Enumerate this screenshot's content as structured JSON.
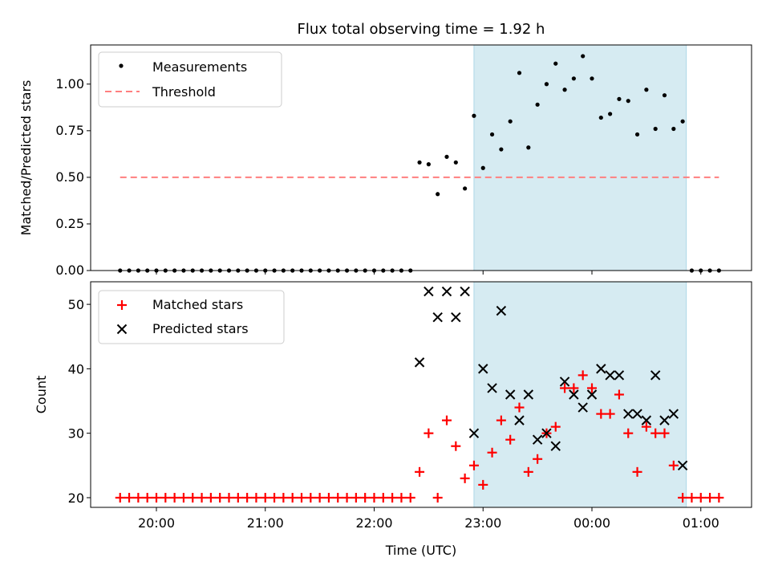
{
  "chart_data": [
    {
      "type": "scatter",
      "title": "Flux total observing time = 1.92 h",
      "ylabel": "Matched/Predicted stars",
      "xlabel": "",
      "ylim": [
        0,
        1.21
      ],
      "yticks": [
        "0.00",
        "0.25",
        "0.50",
        "0.75",
        "1.00"
      ],
      "legend_position": "top-left",
      "grid": false,
      "threshold": 0.5,
      "highlight_span": [
        "22:55",
        "00:52"
      ],
      "highlight_color": "#add8e6",
      "threshold_color": "#ff7f7f",
      "series": [
        {
          "name": "Measurements",
          "marker": "dot",
          "color": "#000000",
          "points": [
            [
              "19:40",
              0
            ],
            [
              "19:45",
              0
            ],
            [
              "19:50",
              0
            ],
            [
              "19:55",
              0
            ],
            [
              "20:00",
              0
            ],
            [
              "20:05",
              0
            ],
            [
              "20:10",
              0
            ],
            [
              "20:15",
              0
            ],
            [
              "20:20",
              0
            ],
            [
              "20:25",
              0
            ],
            [
              "20:30",
              0
            ],
            [
              "20:35",
              0
            ],
            [
              "20:40",
              0
            ],
            [
              "20:45",
              0
            ],
            [
              "20:50",
              0
            ],
            [
              "20:55",
              0
            ],
            [
              "21:00",
              0
            ],
            [
              "21:05",
              0
            ],
            [
              "21:10",
              0
            ],
            [
              "21:15",
              0
            ],
            [
              "21:20",
              0
            ],
            [
              "21:25",
              0
            ],
            [
              "21:30",
              0
            ],
            [
              "21:35",
              0
            ],
            [
              "21:40",
              0
            ],
            [
              "21:45",
              0
            ],
            [
              "21:50",
              0
            ],
            [
              "21:55",
              0
            ],
            [
              "22:00",
              0
            ],
            [
              "22:05",
              0
            ],
            [
              "22:10",
              0
            ],
            [
              "22:15",
              0
            ],
            [
              "22:20",
              0
            ],
            [
              "22:25",
              0.58
            ],
            [
              "22:30",
              0.57
            ],
            [
              "22:35",
              0.41
            ],
            [
              "22:40",
              0.61
            ],
            [
              "22:45",
              0.58
            ],
            [
              "22:50",
              0.44
            ],
            [
              "22:55",
              0.83
            ],
            [
              "23:00",
              0.55
            ],
            [
              "23:05",
              0.73
            ],
            [
              "23:10",
              0.65
            ],
            [
              "23:15",
              0.8
            ],
            [
              "23:20",
              1.06
            ],
            [
              "23:25",
              0.66
            ],
            [
              "23:30",
              0.89
            ],
            [
              "23:35",
              1.0
            ],
            [
              "23:40",
              1.11
            ],
            [
              "23:45",
              0.97
            ],
            [
              "23:50",
              1.03
            ],
            [
              "23:55",
              1.15
            ],
            [
              "00:00",
              1.03
            ],
            [
              "00:05",
              0.82
            ],
            [
              "00:10",
              0.84
            ],
            [
              "00:15",
              0.92
            ],
            [
              "00:20",
              0.91
            ],
            [
              "00:25",
              0.73
            ],
            [
              "00:30",
              0.97
            ],
            [
              "00:35",
              0.76
            ],
            [
              "00:40",
              0.94
            ],
            [
              "00:45",
              0.76
            ],
            [
              "00:50",
              0.8
            ],
            [
              "00:55",
              0
            ],
            [
              "01:00",
              0
            ],
            [
              "01:05",
              0
            ],
            [
              "01:10",
              0
            ]
          ]
        },
        {
          "name": "Threshold",
          "marker": "dashed-line",
          "color": "#ff7f7f",
          "points": [
            [
              "19:40",
              0.5
            ],
            [
              "01:10",
              0.5
            ]
          ]
        }
      ]
    },
    {
      "type": "scatter",
      "title": "",
      "ylabel": "Count",
      "xlabel": "Time (UTC)",
      "ylim": [
        18.5,
        53.5
      ],
      "yticks": [
        "20",
        "30",
        "40",
        "50"
      ],
      "xticks": [
        "20:00",
        "21:00",
        "22:00",
        "23:00",
        "00:00",
        "01:00"
      ],
      "legend_position": "top-left",
      "grid": false,
      "highlight_span": [
        "22:55",
        "00:52"
      ],
      "highlight_color": "#add8e6",
      "series": [
        {
          "name": "Matched stars",
          "marker": "plus",
          "color": "#ff0000",
          "points": [
            [
              "19:40",
              20
            ],
            [
              "19:45",
              20
            ],
            [
              "19:50",
              20
            ],
            [
              "19:55",
              20
            ],
            [
              "20:00",
              20
            ],
            [
              "20:05",
              20
            ],
            [
              "20:10",
              20
            ],
            [
              "20:15",
              20
            ],
            [
              "20:20",
              20
            ],
            [
              "20:25",
              20
            ],
            [
              "20:30",
              20
            ],
            [
              "20:35",
              20
            ],
            [
              "20:40",
              20
            ],
            [
              "20:45",
              20
            ],
            [
              "20:50",
              20
            ],
            [
              "20:55",
              20
            ],
            [
              "21:00",
              20
            ],
            [
              "21:05",
              20
            ],
            [
              "21:10",
              20
            ],
            [
              "21:15",
              20
            ],
            [
              "21:20",
              20
            ],
            [
              "21:25",
              20
            ],
            [
              "21:30",
              20
            ],
            [
              "21:35",
              20
            ],
            [
              "21:40",
              20
            ],
            [
              "21:45",
              20
            ],
            [
              "21:50",
              20
            ],
            [
              "21:55",
              20
            ],
            [
              "22:00",
              20
            ],
            [
              "22:05",
              20
            ],
            [
              "22:10",
              20
            ],
            [
              "22:15",
              20
            ],
            [
              "22:20",
              20
            ],
            [
              "22:25",
              24
            ],
            [
              "22:30",
              30
            ],
            [
              "22:35",
              20
            ],
            [
              "22:40",
              32
            ],
            [
              "22:45",
              28
            ],
            [
              "22:50",
              23
            ],
            [
              "22:55",
              25
            ],
            [
              "23:00",
              22
            ],
            [
              "23:05",
              27
            ],
            [
              "23:10",
              32
            ],
            [
              "23:15",
              29
            ],
            [
              "23:20",
              34
            ],
            [
              "23:25",
              24
            ],
            [
              "23:30",
              26
            ],
            [
              "23:35",
              30
            ],
            [
              "23:40",
              31
            ],
            [
              "23:45",
              37
            ],
            [
              "23:50",
              37
            ],
            [
              "23:55",
              39
            ],
            [
              "00:00",
              37
            ],
            [
              "00:05",
              33
            ],
            [
              "00:10",
              33
            ],
            [
              "00:15",
              36
            ],
            [
              "00:20",
              30
            ],
            [
              "00:25",
              24
            ],
            [
              "00:30",
              31
            ],
            [
              "00:35",
              30
            ],
            [
              "00:40",
              30
            ],
            [
              "00:45",
              25
            ],
            [
              "00:50",
              20
            ],
            [
              "00:55",
              20
            ],
            [
              "01:00",
              20
            ],
            [
              "01:05",
              20
            ],
            [
              "01:10",
              20
            ]
          ]
        },
        {
          "name": "Predicted stars",
          "marker": "x",
          "color": "#000000",
          "points": [
            [
              "22:25",
              41
            ],
            [
              "22:30",
              52
            ],
            [
              "22:35",
              48
            ],
            [
              "22:40",
              52
            ],
            [
              "22:45",
              48
            ],
            [
              "22:50",
              52
            ],
            [
              "22:55",
              30
            ],
            [
              "23:00",
              40
            ],
            [
              "23:05",
              37
            ],
            [
              "23:10",
              49
            ],
            [
              "23:15",
              36
            ],
            [
              "23:20",
              32
            ],
            [
              "23:25",
              36
            ],
            [
              "23:30",
              29
            ],
            [
              "23:35",
              30
            ],
            [
              "23:40",
              28
            ],
            [
              "23:45",
              38
            ],
            [
              "23:50",
              36
            ],
            [
              "23:55",
              34
            ],
            [
              "00:00",
              36
            ],
            [
              "00:05",
              40
            ],
            [
              "00:10",
              39
            ],
            [
              "00:15",
              39
            ],
            [
              "00:20",
              33
            ],
            [
              "00:25",
              33
            ],
            [
              "00:30",
              32
            ],
            [
              "00:35",
              39
            ],
            [
              "00:40",
              32
            ],
            [
              "00:45",
              33
            ],
            [
              "00:50",
              25
            ]
          ]
        }
      ]
    }
  ],
  "top_xtick_count": 6
}
